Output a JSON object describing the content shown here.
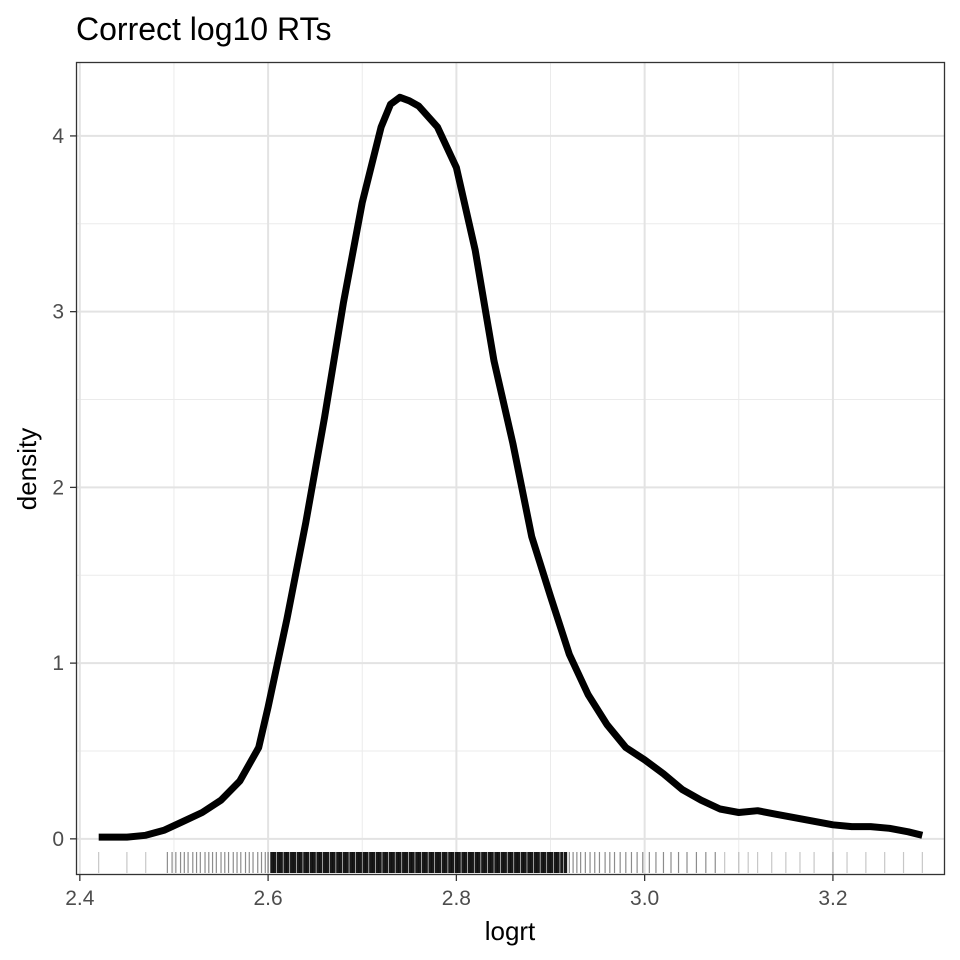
{
  "chart_data": {
    "type": "line",
    "title": "Correct log10 RTs",
    "xlabel": "logrt",
    "ylabel": "density",
    "xlim": [
      2.397,
      3.318
    ],
    "ylim": [
      -0.2,
      4.415
    ],
    "xticks": [
      2.4,
      2.6,
      2.8,
      3.0,
      3.2
    ],
    "xtick_labels": [
      "2.4",
      "2.6",
      "2.8",
      "3.0",
      "3.2"
    ],
    "yticks": [
      0,
      1,
      2,
      3,
      4
    ],
    "ytick_labels": [
      "0",
      "1",
      "2",
      "3",
      "4"
    ],
    "grid": true,
    "series": [
      {
        "color": "#000000",
        "x": [
          2.42,
          2.45,
          2.47,
          2.49,
          2.51,
          2.53,
          2.55,
          2.57,
          2.59,
          2.6,
          2.61,
          2.62,
          2.64,
          2.66,
          2.68,
          2.7,
          2.72,
          2.73,
          2.74,
          2.75,
          2.76,
          2.78,
          2.8,
          2.82,
          2.84,
          2.86,
          2.88,
          2.9,
          2.92,
          2.94,
          2.96,
          2.98,
          3.0,
          3.02,
          3.04,
          3.06,
          3.08,
          3.1,
          3.12,
          3.14,
          3.16,
          3.18,
          3.2,
          3.22,
          3.24,
          3.26,
          3.28,
          3.295
        ],
        "y": [
          0.01,
          0.01,
          0.02,
          0.05,
          0.1,
          0.15,
          0.22,
          0.33,
          0.52,
          0.75,
          1.0,
          1.25,
          1.8,
          2.4,
          3.05,
          3.62,
          4.05,
          4.18,
          4.22,
          4.2,
          4.17,
          4.05,
          3.82,
          3.35,
          2.72,
          2.25,
          1.72,
          1.38,
          1.05,
          0.82,
          0.65,
          0.52,
          0.45,
          0.37,
          0.28,
          0.22,
          0.17,
          0.15,
          0.16,
          0.14,
          0.12,
          0.1,
          0.08,
          0.07,
          0.07,
          0.06,
          0.04,
          0.02
        ]
      }
    ],
    "rug": {
      "color": "#000000",
      "x": [
        2.42,
        2.45,
        2.47,
        2.493,
        2.498,
        2.502,
        2.507,
        2.511,
        2.515,
        2.52,
        2.524,
        2.528,
        2.533,
        2.537,
        2.541,
        2.545,
        2.55,
        2.554,
        2.558,
        2.563,
        2.567,
        2.571,
        2.576,
        2.58,
        2.584,
        2.589,
        2.593,
        2.597,
        2.6,
        2.604,
        2.607,
        2.611,
        2.614,
        2.618,
        2.621,
        2.625,
        2.628,
        2.632,
        2.635,
        2.639,
        2.642,
        2.646,
        2.649,
        2.653,
        2.656,
        2.66,
        2.663,
        2.667,
        2.67,
        2.674,
        2.677,
        2.681,
        2.684,
        2.688,
        2.691,
        2.695,
        2.698,
        2.702,
        2.705,
        2.709,
        2.712,
        2.716,
        2.719,
        2.723,
        2.726,
        2.73,
        2.733,
        2.737,
        2.74,
        2.744,
        2.747,
        2.751,
        2.754,
        2.758,
        2.761,
        2.765,
        2.768,
        2.772,
        2.775,
        2.779,
        2.782,
        2.786,
        2.789,
        2.793,
        2.796,
        2.8,
        2.803,
        2.807,
        2.81,
        2.814,
        2.817,
        2.821,
        2.824,
        2.828,
        2.831,
        2.835,
        2.838,
        2.842,
        2.845,
        2.849,
        2.852,
        2.856,
        2.859,
        2.863,
        2.866,
        2.87,
        2.873,
        2.877,
        2.88,
        2.884,
        2.887,
        2.891,
        2.894,
        2.898,
        2.901,
        2.905,
        2.908,
        2.912,
        2.916,
        2.92,
        2.924,
        2.928,
        2.932,
        2.937,
        2.942,
        2.947,
        2.952,
        2.958,
        2.963,
        2.968,
        2.974,
        2.98,
        2.986,
        2.992,
        2.998,
        3.005,
        3.012,
        3.02,
        3.028,
        3.036,
        3.045,
        3.055,
        3.065,
        3.075,
        3.085,
        3.1,
        3.11,
        3.12,
        3.135,
        3.15,
        3.165,
        3.18,
        3.2,
        3.215,
        3.235,
        3.255,
        3.275,
        3.295
      ]
    }
  }
}
